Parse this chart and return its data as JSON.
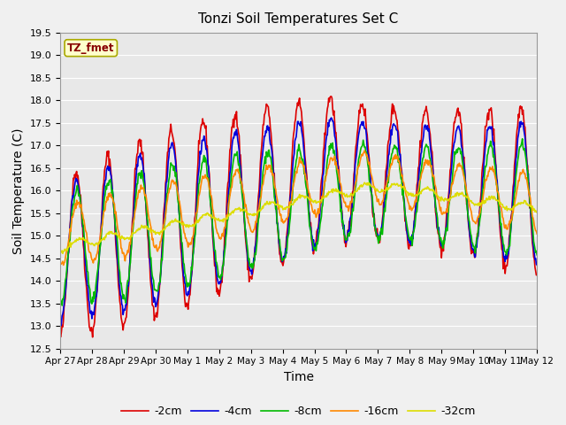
{
  "title": "Tonzi Soil Temperatures Set C",
  "xlabel": "Time",
  "ylabel": "Soil Temperature (C)",
  "ylim": [
    12.5,
    19.5
  ],
  "yticks": [
    12.5,
    13.0,
    13.5,
    14.0,
    14.5,
    15.0,
    15.5,
    16.0,
    16.5,
    17.0,
    17.5,
    18.0,
    18.5,
    19.0,
    19.5
  ],
  "xtick_labels": [
    "Apr 27",
    "Apr 28",
    "Apr 29",
    "Apr 30",
    "May 1",
    "May 2",
    "May 3",
    "May 4",
    "May 5",
    "May 6",
    "May 7",
    "May 8",
    "May 9",
    "May 10",
    "May 11",
    "May 12"
  ],
  "legend_labels": [
    "-2cm",
    "-4cm",
    "-8cm",
    "-16cm",
    "-32cm"
  ],
  "line_colors": [
    "#dd0000",
    "#0000dd",
    "#00bb00",
    "#ff8800",
    "#dddd00"
  ],
  "line_widths": [
    1.2,
    1.2,
    1.2,
    1.2,
    1.2
  ],
  "label_box_text": "TZ_fmet",
  "label_box_color": "#ffffcc",
  "label_box_text_color": "#880000",
  "background_color": "#e8e8e8",
  "grid_color": "#ffffff",
  "fig_width": 6.4,
  "fig_height": 4.8,
  "dpi": 100
}
